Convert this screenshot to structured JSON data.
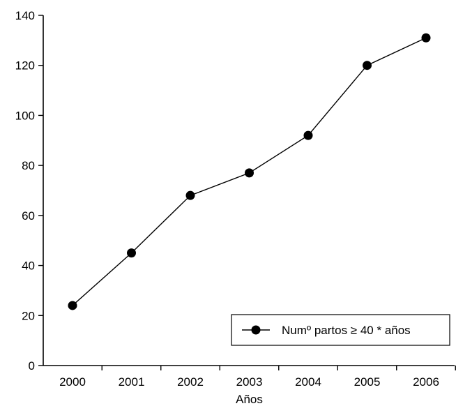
{
  "chart_data": {
    "type": "line",
    "title": "",
    "xlabel": "Años",
    "ylabel": "",
    "categories": [
      "2000",
      "2001",
      "2002",
      "2003",
      "2004",
      "2005",
      "2006"
    ],
    "series": [
      {
        "name": "Numº partos ≥ 40 * años",
        "values": [
          24,
          45,
          68,
          77,
          92,
          120,
          131
        ]
      }
    ],
    "ylim": [
      0,
      140
    ],
    "yticks": [
      0,
      20,
      40,
      60,
      80,
      100,
      120,
      140
    ],
    "grid": false,
    "legend_position": "bottom-right",
    "line_color": "#000000",
    "marker_color": "#000000"
  }
}
